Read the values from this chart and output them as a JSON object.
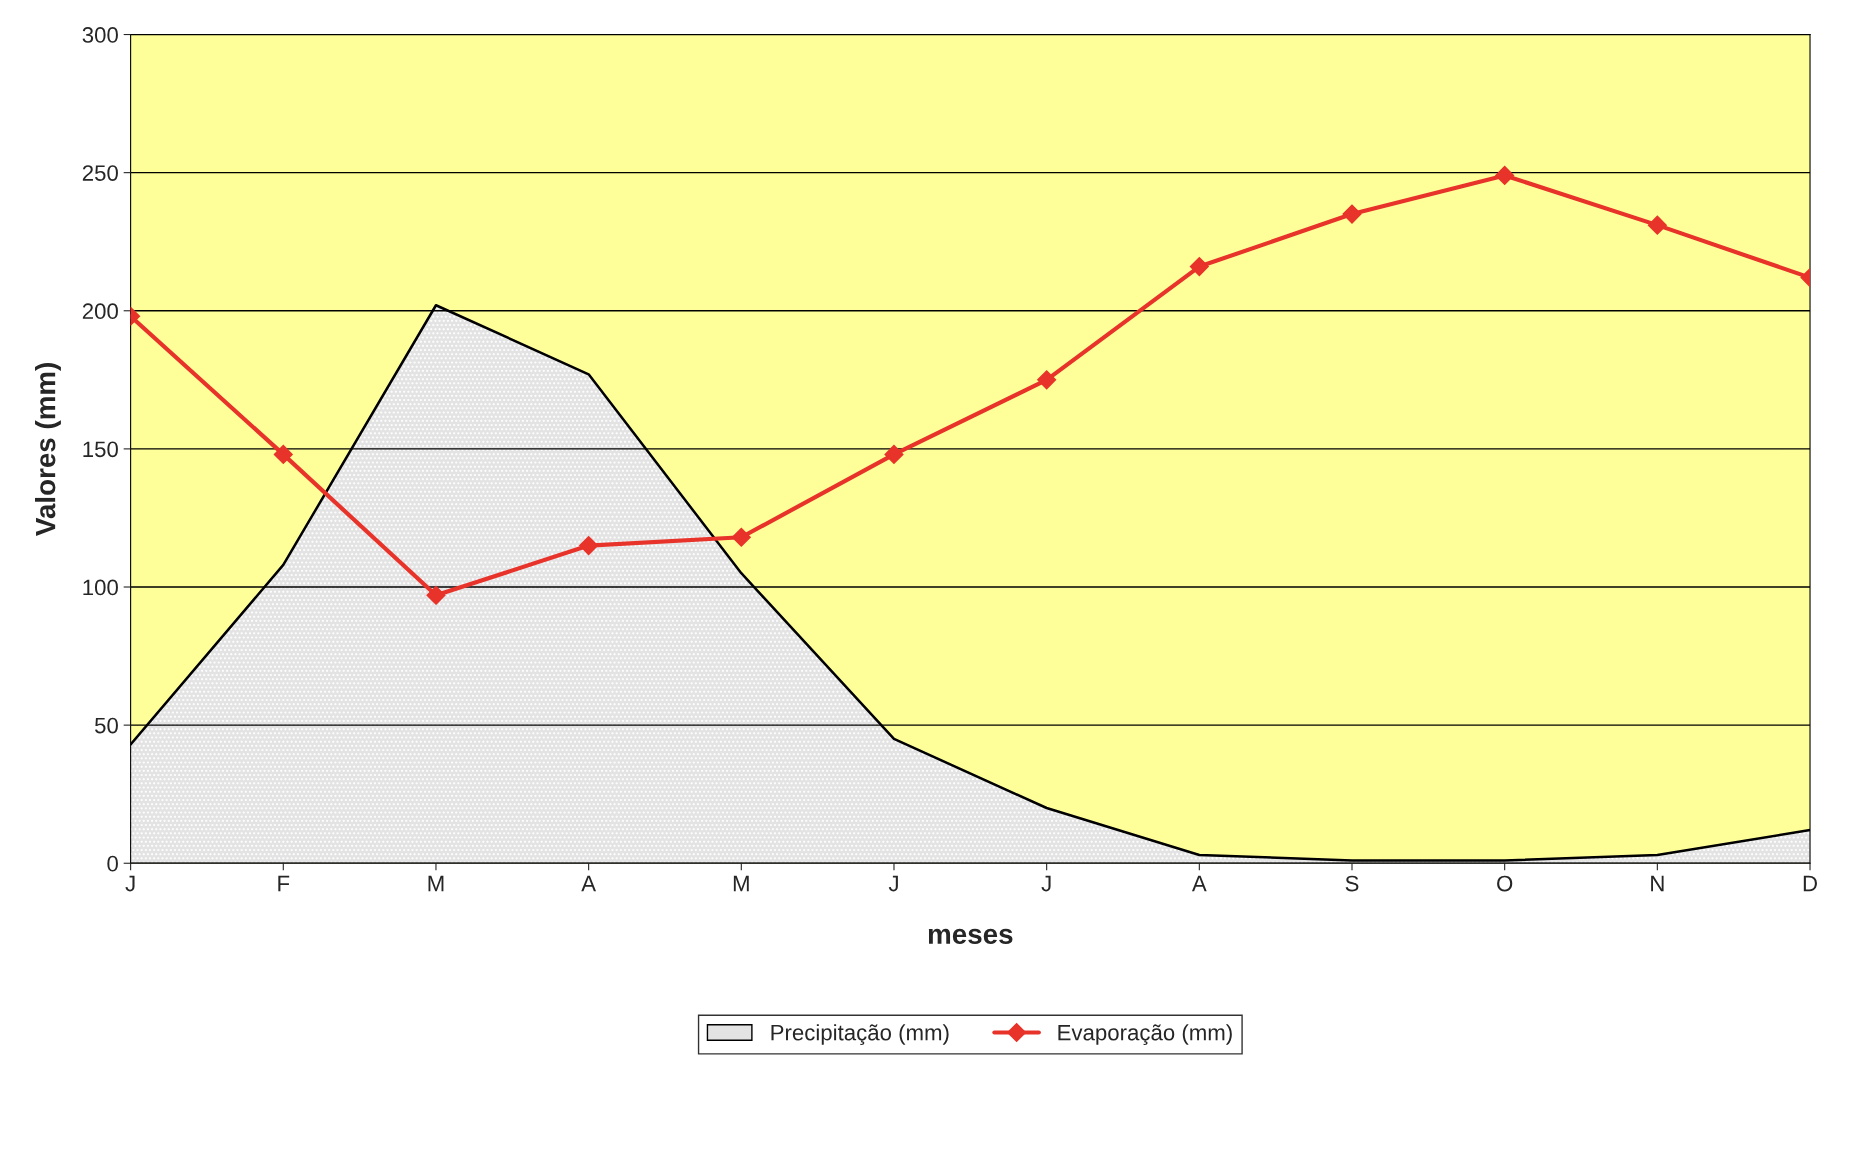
{
  "chart_data": {
    "type": "line",
    "xlabel": "meses",
    "ylabel": "Valores (mm)",
    "categories": [
      "J",
      "F",
      "M",
      "A",
      "M",
      "J",
      "J",
      "A",
      "S",
      "O",
      "N",
      "D"
    ],
    "series": [
      {
        "name": "Precipitação (mm)",
        "type": "area",
        "color": "#e3e3e3",
        "values": [
          43,
          108,
          202,
          177,
          105,
          45,
          20,
          3,
          1,
          1,
          3,
          12
        ]
      },
      {
        "name": "Evaporação (mm)",
        "color": "#e8332a",
        "marker": "diamond",
        "line_style": "solid",
        "values": [
          198,
          148,
          97,
          115,
          118,
          148,
          175,
          216,
          235,
          249,
          231,
          212
        ]
      }
    ],
    "ylim": [
      0,
      300
    ],
    "yticks": [
      0,
      50,
      100,
      150,
      200,
      250,
      300
    ],
    "grid": "y",
    "legend": "bottom"
  }
}
